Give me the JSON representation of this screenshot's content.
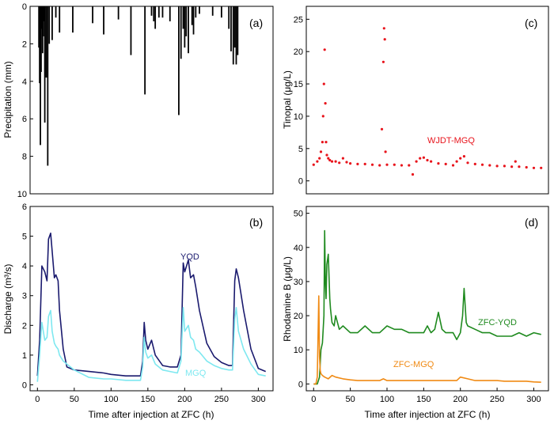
{
  "colors": {
    "precip": "#000000",
    "yqd": "#1a1a6e",
    "mgq": "#7ee8f0",
    "wjdt": "#e8141c",
    "zfc_yqd": "#1f8a1f",
    "zfc_mgq": "#f08a14"
  },
  "panels": {
    "a": {
      "label": "(a)",
      "ylabel": "Precipitation (mm)"
    },
    "b": {
      "label": "(b)",
      "ylabel": "Discharge (m³/s)",
      "xlabel": "Time after injection at ZFC (h)"
    },
    "c": {
      "label": "(c)",
      "ylabel": "Tinopal (μg/L)"
    },
    "d": {
      "label": "(d)",
      "ylabel": "Rhodamine B (μg/L)",
      "xlabel": "Time after injection at ZFC (h)"
    }
  },
  "chart_data": [
    {
      "id": "a",
      "type": "bar",
      "ylabel": "Precipitation (mm)",
      "xlim": [
        -10,
        320
      ],
      "ylim": [
        0,
        10
      ],
      "y_inverted": true,
      "xticks": [],
      "yticks": [
        0,
        2,
        4,
        6,
        8,
        10
      ],
      "x": [
        2,
        3,
        4,
        5,
        6,
        7,
        8,
        9,
        10,
        12,
        14,
        16,
        20,
        25,
        30,
        48,
        75,
        90,
        110,
        127,
        146,
        155,
        158,
        160,
        165,
        170,
        180,
        192,
        195,
        198,
        200,
        202,
        205,
        210,
        212,
        215,
        220,
        238,
        250,
        260,
        263,
        266,
        268,
        270,
        272
      ],
      "values": [
        2.2,
        4.1,
        7.4,
        3.5,
        1.2,
        2.5,
        1.6,
        0.8,
        6.2,
        3.8,
        8.5,
        2.0,
        1.8,
        0.6,
        1.4,
        1.4,
        0.9,
        1.5,
        0.7,
        2.6,
        4.7,
        0.5,
        0.8,
        1.2,
        0.6,
        0.6,
        0.8,
        5.8,
        2.8,
        1.2,
        2.2,
        1.6,
        2.5,
        1.0,
        1.5,
        0.6,
        0.4,
        0.5,
        0.6,
        1.2,
        2.4,
        3.1,
        2.2,
        3.1,
        2.6
      ]
    },
    {
      "id": "b",
      "type": "line",
      "xlabel": "Time after injection at ZFC (h)",
      "ylabel": "Discharge (m³/s)",
      "xlim": [
        -10,
        320
      ],
      "ylim": [
        -0.2,
        6
      ],
      "xticks": [
        0,
        50,
        100,
        150,
        200,
        250,
        300
      ],
      "yticks": [
        0,
        1,
        2,
        3,
        4,
        5,
        6
      ],
      "series": [
        {
          "name": "YQD",
          "x": [
            0,
            3,
            6,
            10,
            13,
            15,
            18,
            20,
            23,
            25,
            28,
            30,
            35,
            40,
            50,
            70,
            90,
            100,
            120,
            140,
            143,
            145,
            147,
            150,
            155,
            160,
            170,
            180,
            190,
            195,
            198,
            200,
            205,
            208,
            212,
            215,
            220,
            230,
            240,
            250,
            260,
            265,
            268,
            270,
            273,
            280,
            290,
            300,
            310
          ],
          "y": [
            0.3,
            1.5,
            4.0,
            3.8,
            3.5,
            4.9,
            5.1,
            4.5,
            3.6,
            3.7,
            3.5,
            2.5,
            1.2,
            0.6,
            0.5,
            0.45,
            0.4,
            0.35,
            0.3,
            0.3,
            0.8,
            2.1,
            1.5,
            1.2,
            1.5,
            1.0,
            0.65,
            0.6,
            0.6,
            1.0,
            4.1,
            3.8,
            4.2,
            3.6,
            3.7,
            3.3,
            2.5,
            1.4,
            0.95,
            0.75,
            0.65,
            0.65,
            3.5,
            3.9,
            3.6,
            2.5,
            1.2,
            0.55,
            0.45
          ]
        },
        {
          "name": "MGQ",
          "x": [
            0,
            3,
            6,
            10,
            13,
            15,
            18,
            20,
            23,
            25,
            28,
            30,
            35,
            40,
            50,
            70,
            90,
            100,
            120,
            140,
            143,
            145,
            147,
            150,
            155,
            160,
            170,
            180,
            190,
            195,
            198,
            200,
            205,
            208,
            212,
            215,
            220,
            230,
            240,
            250,
            260,
            265,
            268,
            270,
            273,
            280,
            290,
            300,
            310
          ],
          "y": [
            0.1,
            1.0,
            2.1,
            1.5,
            1.6,
            2.3,
            2.5,
            1.8,
            1.4,
            1.3,
            1.2,
            1.0,
            0.8,
            0.7,
            0.5,
            0.25,
            0.2,
            0.2,
            0.15,
            0.15,
            0.6,
            1.6,
            1.1,
            0.9,
            1.0,
            0.7,
            0.5,
            0.45,
            0.4,
            0.8,
            2.6,
            1.8,
            2.0,
            1.6,
            1.5,
            1.2,
            1.1,
            0.8,
            0.65,
            0.55,
            0.5,
            0.5,
            2.2,
            2.6,
            1.8,
            1.2,
            0.7,
            0.35,
            0.3
          ]
        }
      ],
      "annotations": [
        {
          "text": "YQD"
        },
        {
          "text": "MGQ"
        }
      ]
    },
    {
      "id": "c",
      "type": "scatter",
      "ylabel": "Tinopal (μg/L)",
      "xlim": [
        -10,
        320
      ],
      "ylim": [
        -2,
        27
      ],
      "xticks": [],
      "yticks": [
        0,
        5,
        10,
        15,
        20,
        25
      ],
      "series": [
        {
          "name": "WJDT-MGQ",
          "x": [
            0,
            5,
            8,
            10,
            12,
            13,
            14,
            15,
            16,
            17,
            18,
            20,
            22,
            25,
            30,
            35,
            40,
            45,
            50,
            60,
            70,
            80,
            90,
            93,
            95,
            96,
            97,
            98,
            100,
            110,
            120,
            130,
            135,
            140,
            145,
            150,
            155,
            160,
            170,
            180,
            190,
            195,
            200,
            205,
            210,
            220,
            230,
            240,
            250,
            260,
            270,
            275,
            280,
            290,
            300,
            310
          ],
          "y": [
            2.5,
            3.0,
            3.5,
            4.5,
            6.0,
            10.0,
            15.0,
            20.3,
            12.0,
            6.0,
            4.0,
            3.5,
            3.2,
            3.0,
            3.0,
            2.8,
            3.5,
            2.9,
            2.7,
            2.6,
            2.6,
            2.5,
            2.4,
            8.0,
            18.4,
            23.6,
            21.9,
            4.5,
            2.5,
            2.5,
            2.4,
            2.4,
            1.0,
            3.0,
            3.5,
            3.6,
            3.2,
            3.0,
            2.7,
            2.6,
            2.4,
            3.0,
            3.5,
            3.8,
            2.8,
            2.6,
            2.5,
            2.4,
            2.3,
            2.3,
            2.2,
            3.0,
            2.2,
            2.1,
            2.0,
            2.0
          ]
        }
      ],
      "annotations": [
        {
          "text": "WJDT-MGQ"
        }
      ]
    },
    {
      "id": "d",
      "type": "line",
      "xlabel": "Time after injection at ZFC (h)",
      "ylabel": "Rhodamine B (μg/L)",
      "xlim": [
        -10,
        320
      ],
      "ylim": [
        -2,
        52
      ],
      "xticks": [
        0,
        50,
        100,
        150,
        200,
        250,
        300
      ],
      "yticks": [
        0,
        10,
        20,
        30,
        40,
        50
      ],
      "series": [
        {
          "name": "ZFC-YQD",
          "x": [
            0,
            5,
            8,
            10,
            12,
            14,
            15,
            16,
            17,
            18,
            20,
            22,
            23,
            25,
            28,
            30,
            35,
            40,
            50,
            60,
            70,
            80,
            90,
            100,
            110,
            120,
            130,
            140,
            150,
            155,
            160,
            165,
            170,
            175,
            180,
            190,
            195,
            200,
            203,
            205,
            208,
            210,
            220,
            230,
            240,
            250,
            260,
            270,
            280,
            290,
            300,
            310
          ],
          "y": [
            0,
            0,
            2,
            10,
            12,
            20,
            44.9,
            30,
            25,
            35,
            38,
            25,
            22,
            18,
            17,
            20,
            16,
            17,
            15,
            15,
            17,
            15,
            15,
            17,
            16,
            16,
            15,
            15,
            15,
            17,
            15,
            16,
            21,
            16,
            15,
            15,
            13,
            15,
            20,
            28,
            18,
            17,
            16,
            15,
            15,
            14,
            14,
            14,
            15,
            14,
            15,
            14.5
          ]
        },
        {
          "name": "ZFC-MGQ",
          "x": [
            0,
            3,
            5,
            7,
            8,
            9,
            10,
            12,
            15,
            20,
            25,
            30,
            40,
            50,
            60,
            70,
            80,
            90,
            95,
            100,
            110,
            120,
            130,
            140,
            150,
            160,
            170,
            180,
            190,
            195,
            200,
            210,
            220,
            230,
            240,
            250,
            260,
            270,
            280,
            290,
            300,
            310
          ],
          "y": [
            0,
            0,
            2,
            25.8,
            8,
            4,
            3,
            2.5,
            2.0,
            1.5,
            2.5,
            2.0,
            1.5,
            1.2,
            1.0,
            1.0,
            1.0,
            1.0,
            1.5,
            1.0,
            1.0,
            1.0,
            1.0,
            1.0,
            1.0,
            1.0,
            1.0,
            1.0,
            1.0,
            1.0,
            2.0,
            1.5,
            1.0,
            1.0,
            1.0,
            1.0,
            0.8,
            0.8,
            0.8,
            0.8,
            0.6,
            0.5
          ]
        }
      ],
      "annotations": [
        {
          "text": "ZFC-YQD"
        },
        {
          "text": "ZFC-MGQ"
        }
      ]
    }
  ]
}
